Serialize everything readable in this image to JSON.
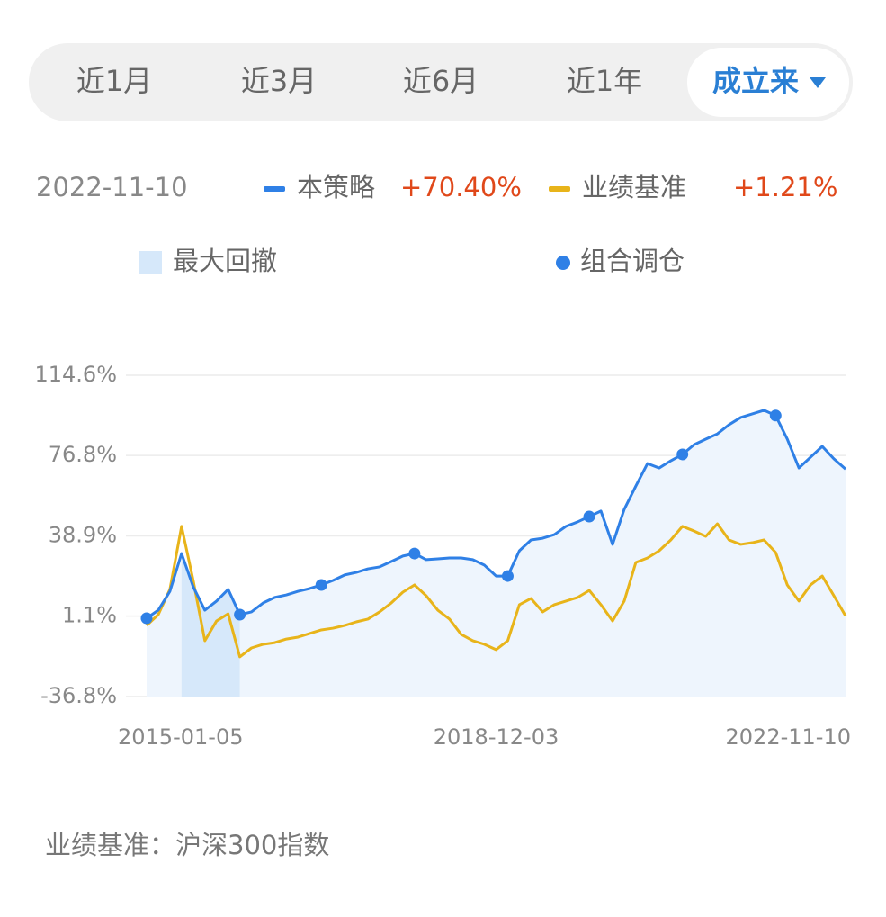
{
  "tabs": [
    "近1月",
    "近3月",
    "近6月",
    "近1年",
    "成立来"
  ],
  "selected_tab": 4,
  "date": "2022-11-10",
  "footer": "业绩基准：沪深300指数",
  "chart_data": {
    "type": "line",
    "categories": [
      "2015-01-05",
      null,
      null,
      null,
      null,
      null,
      null,
      null,
      null,
      null,
      null,
      null,
      null,
      null,
      null,
      null,
      null,
      null,
      null,
      null,
      null,
      null,
      null,
      null,
      null,
      null,
      null,
      null,
      null,
      null,
      "2018-12-03",
      null,
      null,
      null,
      null,
      null,
      null,
      null,
      null,
      null,
      null,
      null,
      null,
      null,
      null,
      null,
      null,
      null,
      null,
      null,
      null,
      null,
      null,
      null,
      null,
      null,
      null,
      null,
      null,
      null,
      "2022-11-10"
    ],
    "series": [
      {
        "name": "本策略",
        "color": "#2f80e6",
        "return_label": "+70.40%",
        "values": [
          0.1,
          3.9,
          12.8,
          30.6,
          14.9,
          3.9,
          8.2,
          13.7,
          1.8,
          3.1,
          7.3,
          9.9,
          11.1,
          12.8,
          14.1,
          15.8,
          17.9,
          20.5,
          21.7,
          23.4,
          24.3,
          26.8,
          29.4,
          30.6,
          27.7,
          28.1,
          28.5,
          28.5,
          27.7,
          25.1,
          20.0,
          20.0,
          31.9,
          37.0,
          37.8,
          39.5,
          43.4,
          45.5,
          48.0,
          50.6,
          34.9,
          51.4,
          62.4,
          73.0,
          70.9,
          74.3,
          77.3,
          81.9,
          84.5,
          87.0,
          91.3,
          94.7,
          96.4,
          98.1,
          95.6,
          84.5,
          70.9,
          76.0,
          81.1,
          75.2,
          70.4
        ]
      },
      {
        "name": "业绩基准",
        "color": "#e8b41a",
        "return_label": "+1.21%",
        "values": [
          -3.3,
          1.8,
          13.7,
          43.4,
          17.9,
          -10.5,
          -1.2,
          2.2,
          -18.1,
          -13.9,
          -12.2,
          -11.4,
          -9.7,
          -8.8,
          -7.1,
          -5.4,
          -4.6,
          -3.3,
          -1.6,
          -0.3,
          3.1,
          7.3,
          12.4,
          15.8,
          10.7,
          3.9,
          -0.3,
          -7.5,
          -10.5,
          -12.2,
          -14.7,
          -10.5,
          6.5,
          9.4,
          3.1,
          6.5,
          8.2,
          9.9,
          13.2,
          6.5,
          -1.2,
          8.2,
          26.4,
          28.5,
          31.9,
          37.0,
          43.4,
          41.2,
          38.7,
          44.6,
          37.0,
          34.9,
          35.7,
          37.0,
          31.1,
          15.8,
          8.2,
          15.8,
          20.0,
          10.7,
          1.2
        ]
      }
    ],
    "drawdown_label": "最大回撤",
    "drawdown_color": "#d6e8fa",
    "drawdown_range": [
      3,
      8
    ],
    "rebalance_label": "组合调仓",
    "rebalance_color": "#2f80e6",
    "rebalance_points": [
      0,
      8,
      15,
      23,
      31,
      38,
      46,
      54
    ],
    "ylim": [
      -36.8,
      114.6
    ],
    "yticks": [
      {
        "value": -36.8,
        "label": "-36.8%"
      },
      {
        "value": 1.1,
        "label": "1.1%"
      },
      {
        "value": 38.9,
        "label": "38.9%"
      },
      {
        "value": 76.8,
        "label": "76.8%"
      },
      {
        "value": 114.6,
        "label": "114.6%"
      }
    ],
    "grid": true
  }
}
